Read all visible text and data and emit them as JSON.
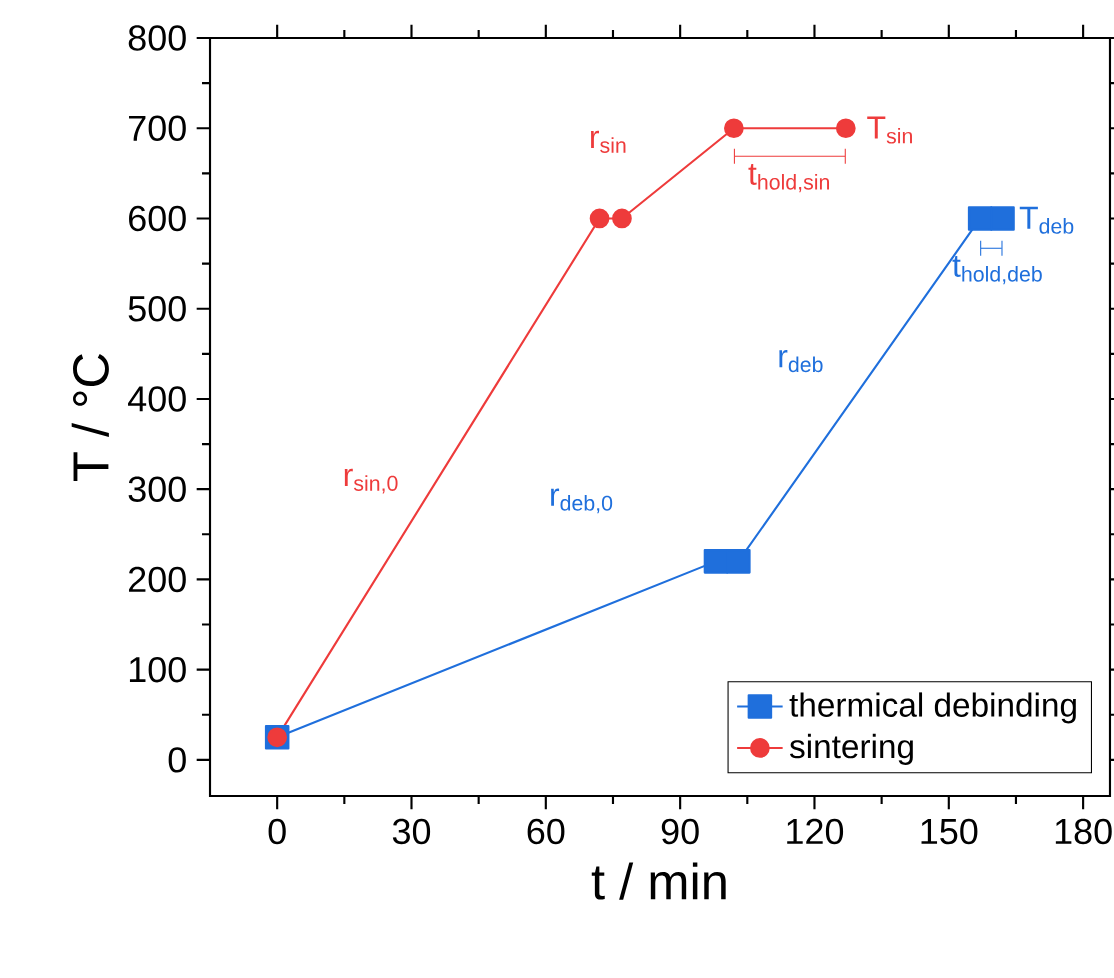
{
  "chart_data": {
    "type": "line",
    "xlabel": "t / min",
    "ylabel": "T / °C",
    "xlim": [
      -15,
      186
    ],
    "ylim": [
      -40,
      800
    ],
    "xticks": [
      0,
      30,
      60,
      90,
      120,
      150,
      180
    ],
    "yticks": [
      0,
      100,
      200,
      300,
      400,
      500,
      600,
      700,
      800
    ],
    "legend": "bottom right",
    "grid": false,
    "line_style": "solid",
    "series": [
      {
        "name": "thermical debinding",
        "color": "#1f6fdc",
        "marker": "square",
        "x": [
          0,
          98,
          103,
          157,
          162
        ],
        "values": [
          25,
          220,
          220,
          600,
          600
        ]
      },
      {
        "name": "sintering",
        "color": "#ee3b3b",
        "marker": "circle",
        "x": [
          0,
          72,
          77,
          102,
          127
        ],
        "values": [
          25,
          600,
          600,
          700,
          700
        ]
      }
    ],
    "annotations": [
      "r$_{sin}$",
      "r$_{sin,0}$",
      "T$_{sin}$",
      "t$_{hold,sin}$",
      "r$_{deb}$",
      "r$_{deb,0}$",
      "T$_{deb}$",
      "t$_{hold,deb}$"
    ]
  }
}
